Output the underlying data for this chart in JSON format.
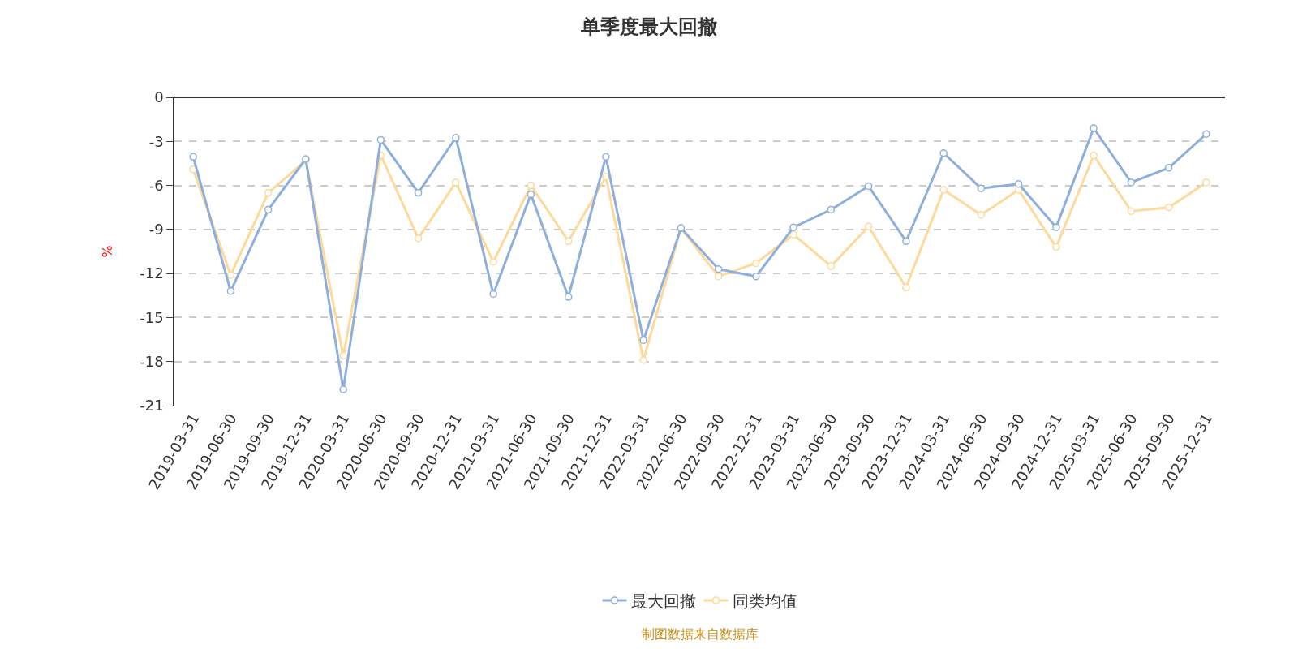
{
  "chart_data": {
    "type": "line",
    "title": "单季度最大回撤",
    "ylabel": "%",
    "categories": [
      "2019-03-31",
      "2019-06-30",
      "2019-09-30",
      "2019-12-31",
      "2020-03-31",
      "2020-06-30",
      "2020-09-30",
      "2020-12-31",
      "2021-03-31",
      "2021-06-30",
      "2021-09-30",
      "2021-12-31",
      "2022-03-31",
      "2022-06-30",
      "2022-09-30",
      "2022-12-31",
      "2023-03-31",
      "2023-06-30",
      "2023-09-30",
      "2023-12-31",
      "2024-03-31",
      "2024-06-30",
      "2024-09-30",
      "2024-12-31",
      "2025-03-31",
      "2025-06-30",
      "2025-09-30",
      "2025-12-31"
    ],
    "series": [
      {
        "name": "最大回撤",
        "color": "#8eafdc",
        "values": [
          -4.05,
          -13.2,
          -7.65,
          -4.2,
          -19.9,
          -2.9,
          -6.5,
          -2.75,
          -13.4,
          -6.6,
          -13.6,
          -4.05,
          -16.55,
          -8.9,
          -11.7,
          -12.2,
          -8.85,
          -7.65,
          -6.05,
          -9.8,
          -3.8,
          -6.2,
          -5.9,
          -8.85,
          -2.1,
          -5.8,
          -4.8,
          -2.5
        ]
      },
      {
        "name": "同类均值",
        "color": "#fdd99b",
        "values": [
          -4.9,
          -12.1,
          -6.5,
          -4.3,
          -17.6,
          -3.95,
          -9.6,
          -5.8,
          -11.2,
          -6.0,
          -9.8,
          -5.4,
          -17.9,
          -8.9,
          -12.2,
          -11.3,
          -9.35,
          -11.5,
          -8.8,
          -12.95,
          -6.3,
          -8.0,
          -6.3,
          -10.2,
          -3.95,
          -7.75,
          -7.5,
          -5.8
        ]
      }
    ],
    "ylim": [
      -21,
      0
    ],
    "yticks": [
      0,
      -3,
      -6,
      -9,
      -12,
      -15,
      -18,
      -21
    ],
    "grid": "y",
    "legend": "bottom",
    "marker": "circle",
    "line_style": "solid",
    "annotations": [
      "制图数据来自数据库"
    ]
  }
}
